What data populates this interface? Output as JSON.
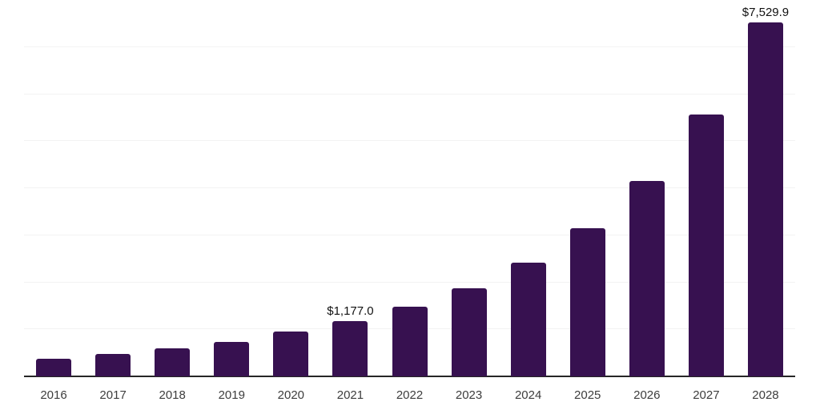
{
  "chart_data": {
    "type": "bar",
    "title": "",
    "xlabel": "",
    "ylabel": "",
    "categories": [
      "2016",
      "2017",
      "2018",
      "2019",
      "2020",
      "2021",
      "2022",
      "2023",
      "2024",
      "2025",
      "2026",
      "2027",
      "2028"
    ],
    "values": [
      380,
      480,
      600,
      725,
      950,
      1177.0,
      1480,
      1880,
      2420,
      3150,
      4150,
      5560,
      7529.9
    ],
    "point_labels": [
      "",
      "",
      "",
      "",
      "",
      "$1,177.0",
      "",
      "",
      "",
      "",
      "",
      "",
      "$7,529.9"
    ],
    "ylim": [
      0,
      8000
    ],
    "grid_interval": 1000,
    "grid": true,
    "legend": false,
    "colors": {
      "bar": "#371150",
      "axis": "#262626",
      "gridline": "#f3f3f3",
      "value_label": "#111111",
      "tick_label": "#3d3d3d",
      "background": "#ffffff"
    }
  }
}
